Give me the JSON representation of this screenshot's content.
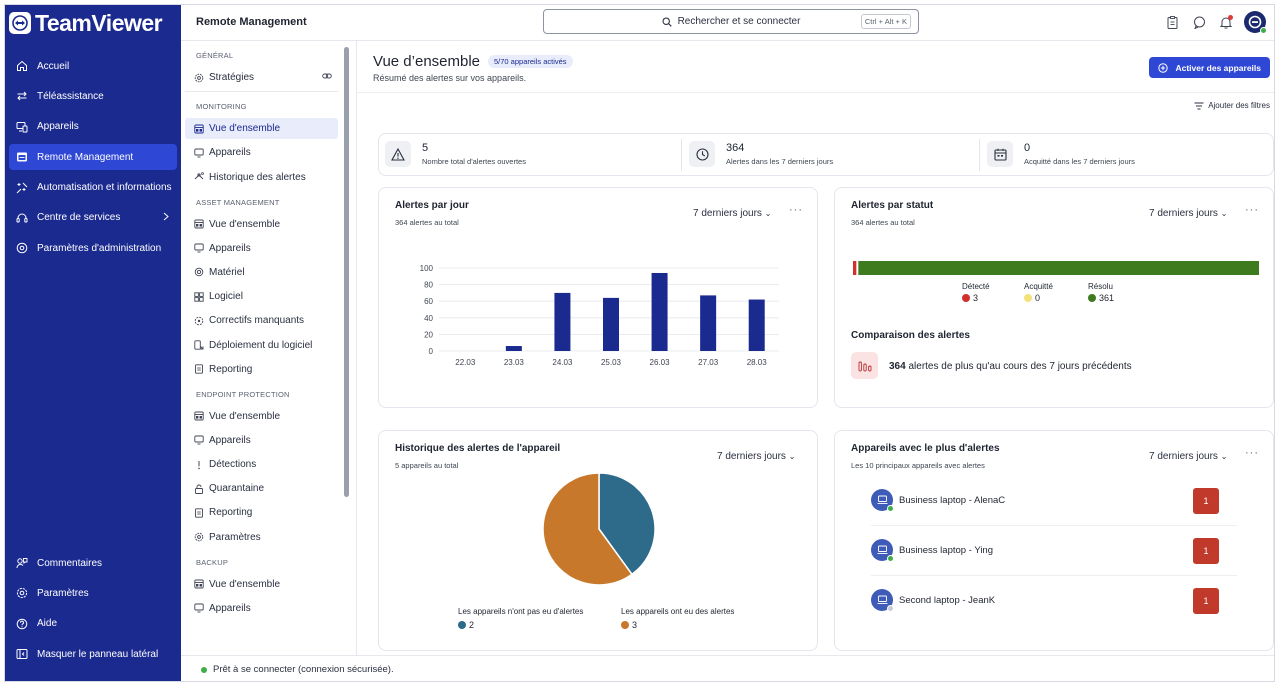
{
  "app": {
    "name": "TeamViewer"
  },
  "leftnav": {
    "items": [
      {
        "label": "Accueil",
        "icon": "home-icon"
      },
      {
        "label": "Téléassistance",
        "icon": "arrows-icon"
      },
      {
        "label": "Appareils",
        "icon": "devices-icon"
      },
      {
        "label": "Remote Management",
        "icon": "remote-management-icon"
      },
      {
        "label": "Automatisation et informations",
        "icon": "automation-icon"
      },
      {
        "label": "Centre de services",
        "icon": "service-center-icon"
      },
      {
        "label": "Paramètres d'administration",
        "icon": "admin-settings-icon"
      }
    ],
    "bottom": [
      {
        "label": "Commentaires",
        "icon": "feedback-icon"
      },
      {
        "label": "Paramètres",
        "icon": "settings-icon"
      },
      {
        "label": "Aide",
        "icon": "help-icon"
      },
      {
        "label": "Masquer le panneau latéral",
        "icon": "hide-panel-icon"
      }
    ]
  },
  "topbar": {
    "title": "Remote Management",
    "search_placeholder": "Rechercher et se connecter",
    "search_shortcut": "Ctrl + Alt + K"
  },
  "subnav": {
    "general": {
      "title": "GÉNÉRAL",
      "items": [
        "Stratégies"
      ]
    },
    "monitoring": {
      "title": "MONITORING",
      "items": [
        "Vue d'ensemble",
        "Appareils",
        "Historique des alertes"
      ]
    },
    "asset": {
      "title": "ASSET MANAGEMENT",
      "items": [
        "Vue d'ensemble",
        "Appareils",
        "Matériel",
        "Logiciel",
        "Correctifs manquants",
        "Déploiement du logiciel",
        "Reporting"
      ]
    },
    "endpoint": {
      "title": "ENDPOINT PROTECTION",
      "items": [
        "Vue d'ensemble",
        "Appareils",
        "Détections",
        "Quarantaine",
        "Reporting",
        "Paramètres"
      ]
    },
    "backup": {
      "title": "BACKUP",
      "items": [
        "Vue d'ensemble",
        "Appareils"
      ]
    }
  },
  "page": {
    "title": "Vue d’ensemble",
    "badge": "5/70 appareils activés",
    "subtitle": "Résumé des alertes sur vos appareils.",
    "activate_button": "Activer des appareils",
    "filters_button": "Ajouter des filtres"
  },
  "stats": [
    {
      "value": "5",
      "label": "Nombre total d'alertes ouvertes",
      "icon": "warning-icon"
    },
    {
      "value": "364",
      "label": "Alertes dans les 7 derniers jours",
      "icon": "clock-icon"
    },
    {
      "value": "0",
      "label": "Acquitté dans les 7 derniers jours",
      "icon": "calendar-icon"
    }
  ],
  "period_label": "7 derniers jours",
  "card_alerts_day": {
    "title": "Alertes par jour",
    "subtitle": "364 alertes au total"
  },
  "card_alerts_status": {
    "title": "Alertes par statut",
    "subtitle": "364 alertes au total",
    "segments": [
      {
        "label": "Détecté",
        "value": "3",
        "color": "#d0312d"
      },
      {
        "label": "Acquitté",
        "value": "0",
        "color": "#f3e27a"
      },
      {
        "label": "Résolu",
        "value": "361",
        "color": "#3e7a1e"
      }
    ],
    "compare_title": "Comparaison des alertes",
    "compare_count": "364",
    "compare_text": "alertes de plus qu'au cours des 7 jours précédents"
  },
  "card_history": {
    "title": "Historique des alertes de l'appareil",
    "subtitle": "5 appareils au total"
  },
  "card_top_devices": {
    "title": "Appareils avec le plus d'alertes",
    "subtitle": "Les 10 principaux appareils avec alertes",
    "devices": [
      {
        "name": "Business laptop - AlenaC",
        "count": "1",
        "status_color": "#3fae49"
      },
      {
        "name": "Business laptop - Ying",
        "count": "1",
        "status_color": "#3fae49"
      },
      {
        "name": "Second laptop - JeanK",
        "count": "1",
        "status_color": "#c8ccd4"
      }
    ]
  },
  "statusbar": {
    "text": "Prêt à se connecter (connexion sécurisée)."
  },
  "chart_data": [
    {
      "type": "bar",
      "title": "Alertes par jour",
      "categories": [
        "22.03",
        "23.03",
        "24.03",
        "25.03",
        "26.03",
        "27.03",
        "28.03"
      ],
      "values": [
        0,
        6,
        70,
        64,
        94,
        67,
        62
      ],
      "ylim": [
        0,
        100
      ],
      "yticks": [
        0,
        20,
        40,
        60,
        80,
        100
      ],
      "color": "#1b2a8f"
    },
    {
      "type": "pie",
      "title": "Historique des alertes de l'appareil",
      "labels": [
        "Les appareils n'ont pas eu d'alertes",
        "Les appareils ont eu des alertes"
      ],
      "values": [
        2,
        3
      ],
      "colors": [
        "#2e6b8a",
        "#c8782a"
      ]
    },
    {
      "type": "bar",
      "title": "Alertes par statut",
      "orientation": "horizontal-stacked",
      "labels": [
        "Détecté",
        "Acquitté",
        "Résolu"
      ],
      "values": [
        3,
        0,
        361
      ],
      "colors": [
        "#d0312d",
        "#f3e27a",
        "#3e7a1e"
      ]
    }
  ]
}
